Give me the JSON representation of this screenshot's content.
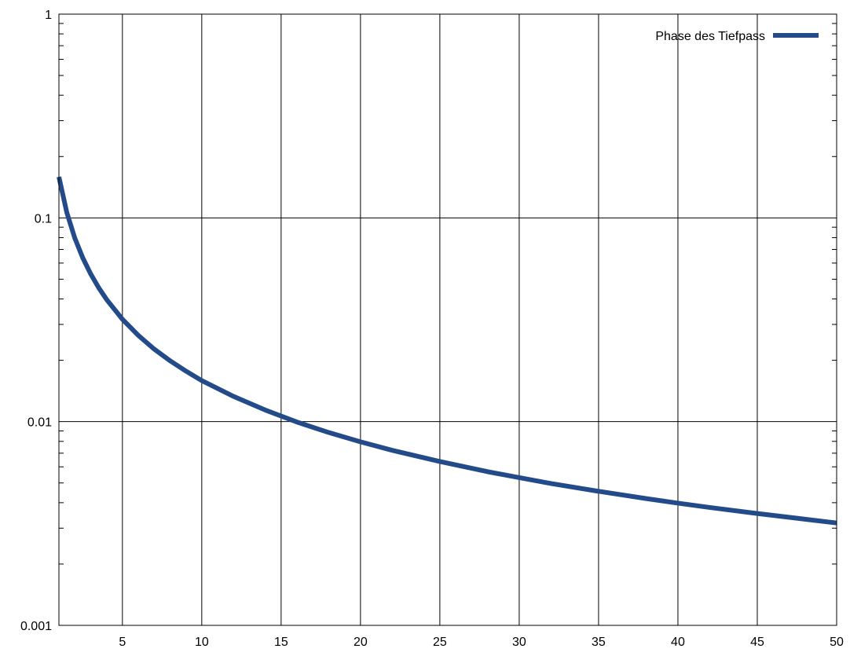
{
  "chart_data": {
    "type": "line",
    "title": "",
    "xlabel": "",
    "ylabel": "",
    "xlim": [
      1,
      50
    ],
    "ylim": [
      0.001,
      1
    ],
    "yscale": "log",
    "grid": true,
    "legend_position": "top-right",
    "x_ticks": [
      {
        "value": 5,
        "label": "5"
      },
      {
        "value": 10,
        "label": "10"
      },
      {
        "value": 15,
        "label": "15"
      },
      {
        "value": 20,
        "label": "20"
      },
      {
        "value": 25,
        "label": "25"
      },
      {
        "value": 30,
        "label": "30"
      },
      {
        "value": 35,
        "label": "35"
      },
      {
        "value": 40,
        "label": "40"
      },
      {
        "value": 45,
        "label": "45"
      },
      {
        "value": 50,
        "label": "50"
      }
    ],
    "y_ticks": [
      {
        "value": 0.001,
        "label": "0.001"
      },
      {
        "value": 0.01,
        "label": "0.01"
      },
      {
        "value": 0.1,
        "label": "0.1"
      },
      {
        "value": 1,
        "label": "1"
      }
    ],
    "series": [
      {
        "name": "Phase des Tiefpass",
        "color": "#234b8a",
        "x": [
          1.0,
          1.5,
          2,
          2.5,
          3,
          3.5,
          4,
          5,
          6,
          7,
          8,
          9,
          10,
          12,
          14,
          16,
          18,
          20,
          22,
          25,
          28,
          30,
          32,
          35,
          38,
          40,
          42,
          45,
          48,
          50
        ],
        "y": [
          0.159,
          0.106,
          0.0796,
          0.0637,
          0.0531,
          0.0455,
          0.0398,
          0.0318,
          0.0265,
          0.0227,
          0.0199,
          0.0177,
          0.0159,
          0.0133,
          0.0114,
          0.00995,
          0.00884,
          0.00796,
          0.00723,
          0.00637,
          0.00568,
          0.00531,
          0.00497,
          0.00455,
          0.00419,
          0.00398,
          0.00379,
          0.00354,
          0.00332,
          0.00318
        ]
      }
    ]
  }
}
